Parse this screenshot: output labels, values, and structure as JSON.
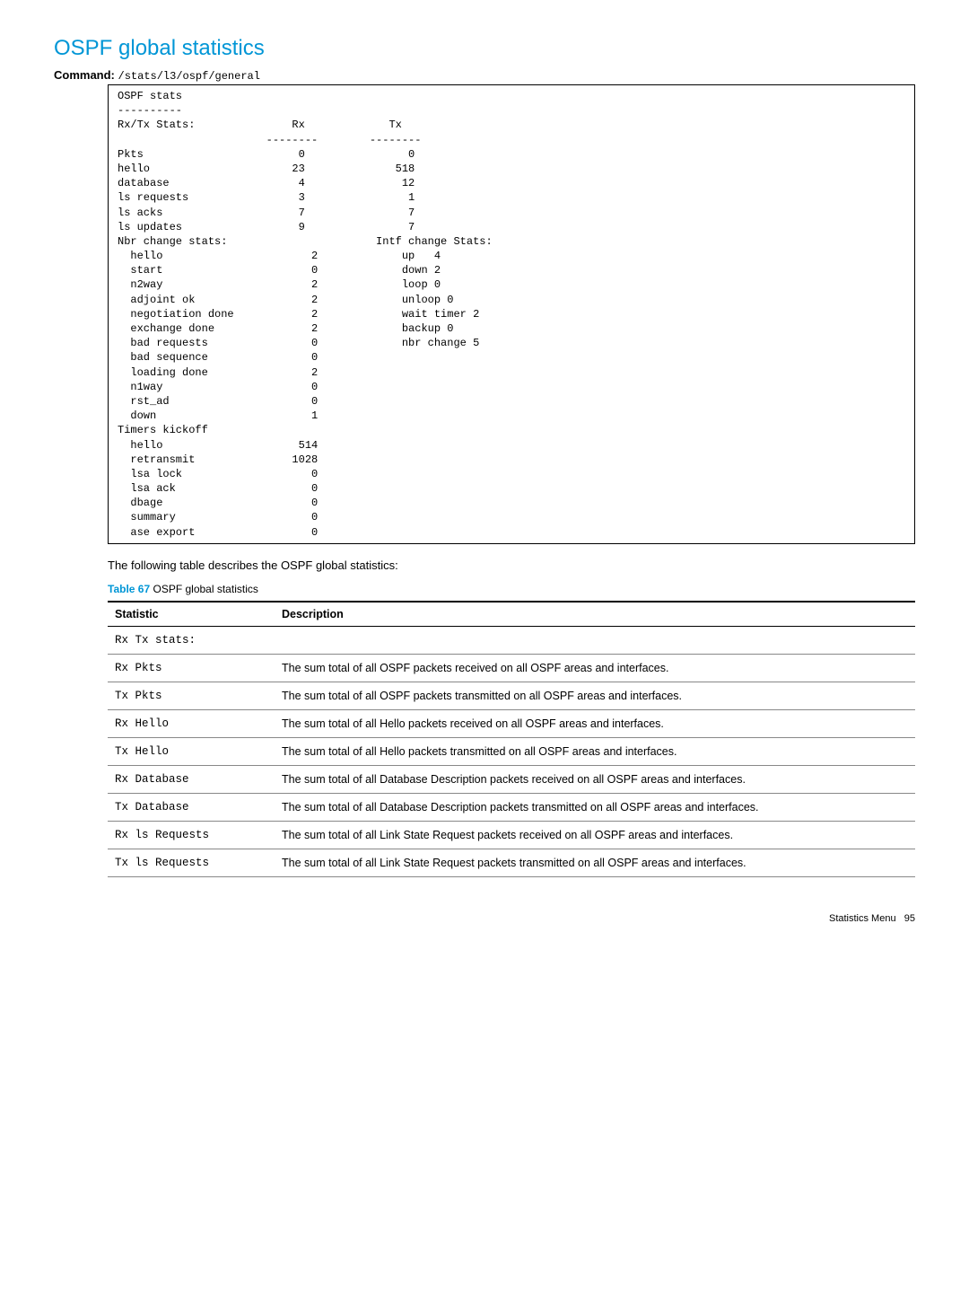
{
  "heading": "OSPF global statistics",
  "command_label": "Command:",
  "command_path": "/stats/l3/ospf/general",
  "terminal_text": "OSPF stats\n----------\nRx/Tx Stats:               Rx             Tx\n                       --------        --------\nPkts                        0                0\nhello                      23              518\ndatabase                    4               12\nls requests                 3                1\nls acks                     7                7\nls updates                  9                7\nNbr change stats:                       Intf change Stats:\n  hello                       2             up   4\n  start                       0             down 2\n  n2way                       2             loop 0\n  adjoint ok                  2             unloop 0\n  negotiation done            2             wait timer 2\n  exchange done               2             backup 0\n  bad requests                0             nbr change 5\n  bad sequence                0\n  loading done                2\n  n1way                       0\n  rst_ad                      0\n  down                        1\nTimers kickoff\n  hello                     514\n  retransmit               1028\n  lsa lock                    0\n  lsa ack                     0\n  dbage                       0\n  summary                     0\n  ase export                  0",
  "intro_text": "The following table describes the OSPF global statistics:",
  "table_caption_label": "Table 67",
  "table_caption_text": "OSPF global statistics",
  "table_headers": {
    "col1": "Statistic",
    "col2": "Description"
  },
  "rows": [
    {
      "stat": "Rx Tx stats:",
      "desc": ""
    },
    {
      "stat": "Rx Pkts",
      "desc": "The sum total of all OSPF packets received on all OSPF areas and interfaces."
    },
    {
      "stat": "Tx Pkts",
      "desc": "The sum total of all OSPF packets transmitted on all OSPF areas and interfaces."
    },
    {
      "stat": "Rx Hello",
      "desc": "The sum total of all Hello packets received on all OSPF areas and interfaces."
    },
    {
      "stat": "Tx Hello",
      "desc": "The sum total of all Hello packets transmitted on all OSPF areas and interfaces."
    },
    {
      "stat": "Rx Database",
      "desc": "The sum total of all Database Description packets received on all OSPF areas and interfaces."
    },
    {
      "stat": "Tx Database",
      "desc": "The sum total of all Database Description packets transmitted on all OSPF areas and interfaces."
    },
    {
      "stat": "Rx ls Requests",
      "desc": "The sum total of all Link State Request packets received on all OSPF areas and interfaces."
    },
    {
      "stat": "Tx ls Requests",
      "desc": "The sum total of all Link State Request packets transmitted on all OSPF areas and interfaces."
    }
  ],
  "footer": {
    "text": "Statistics Menu",
    "page": "95"
  }
}
